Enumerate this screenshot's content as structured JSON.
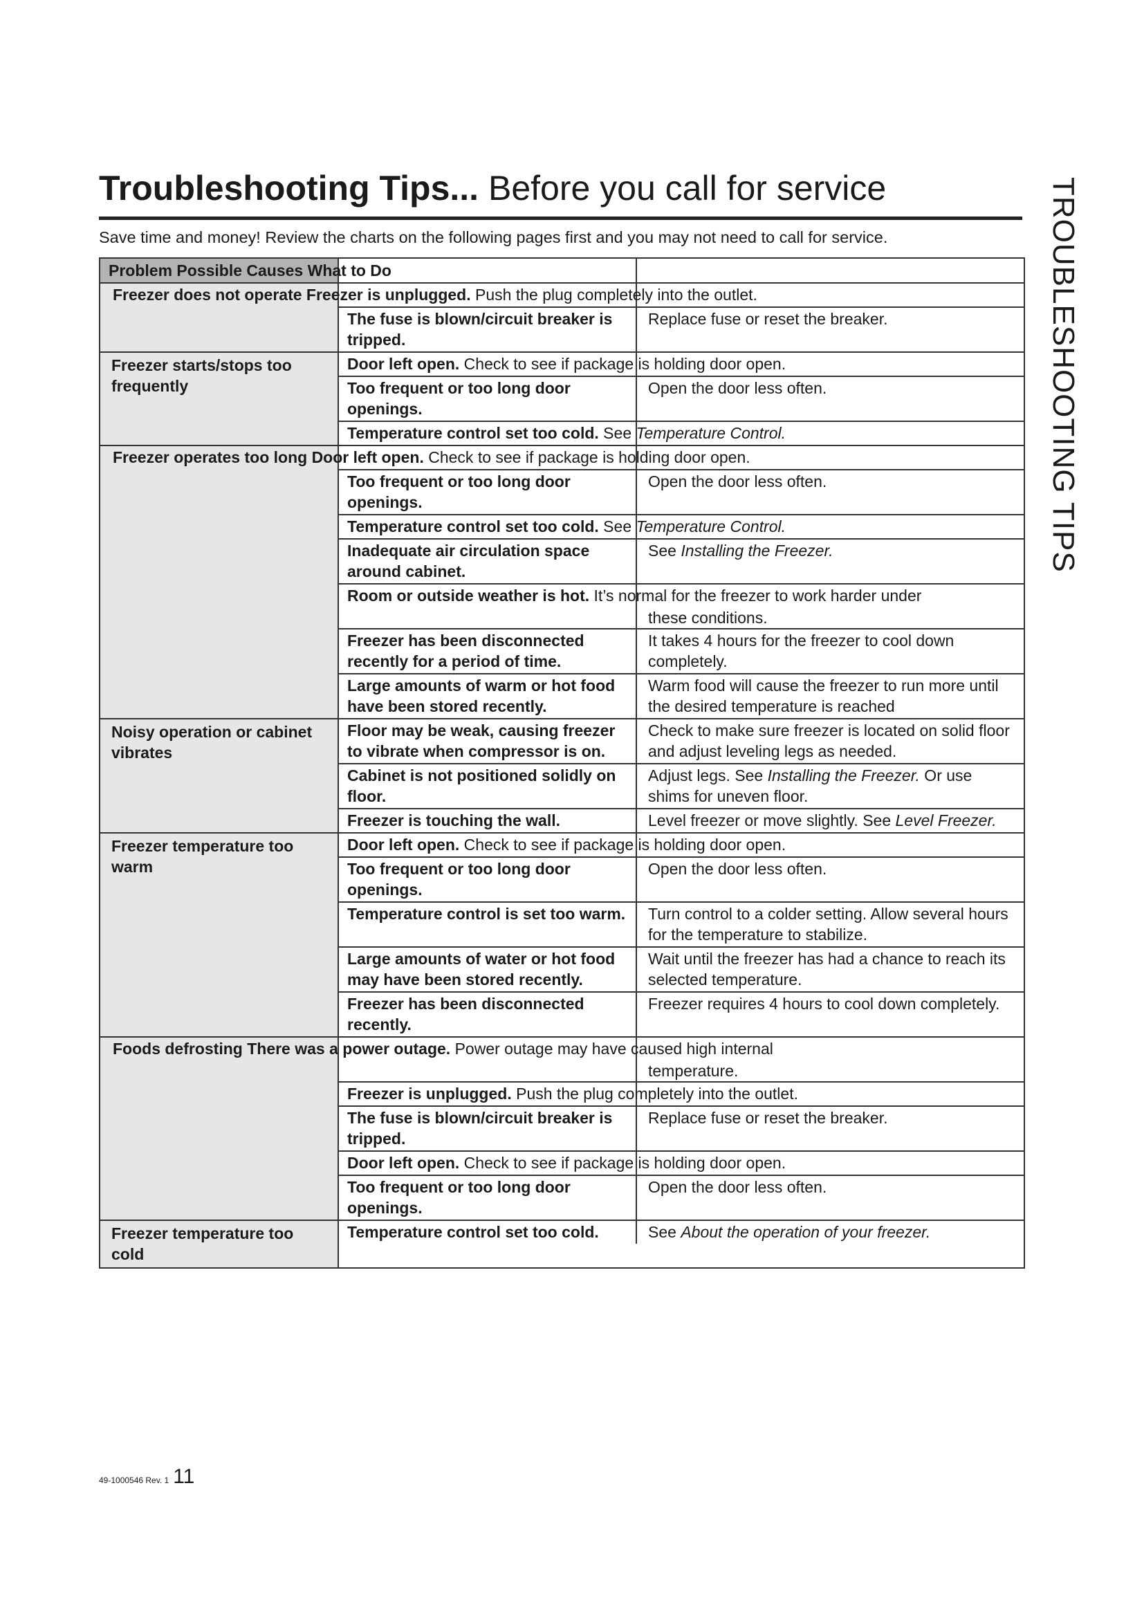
{
  "header": {
    "title_bold": "Troubleshooting Tips...",
    "title_rest": " Before you call for service",
    "intro": "Save time and money! Review the charts on the following pages first and you may not need to call for service.",
    "side_tab": "TROUBLESHOOTING TIPS"
  },
  "table": {
    "header": "Problem Possible Causes What to Do",
    "groups": [
      {
        "problem": "Freezer does not operate",
        "inline": true,
        "rows": [
          {
            "cause": "Freezer is unplugged.",
            "rest": " Push the plug completely into the outlet."
          },
          {
            "cause": "The fuse is blown/circuit breaker is tripped.",
            "action": "Replace fuse or reset the breaker."
          }
        ]
      },
      {
        "problem": "Freezer starts/stops too frequently",
        "rows": [
          {
            "cause": "Door left open.",
            "rest": " Check to see if package is holding door open."
          },
          {
            "cause": "Too frequent or too long door openings.",
            "action": "Open the door less often."
          },
          {
            "cause": "Temperature control set too cold.",
            "rest": " See ",
            "rest_em": "Temperature Control."
          }
        ]
      },
      {
        "problem": "Freezer operates too long",
        "inline": true,
        "rows": [
          {
            "cause": "Door left open.",
            "rest": " Check to see if package is holding door open."
          },
          {
            "cause": "Too frequent or too long door openings.",
            "action": "Open the door less often."
          },
          {
            "cause": "Temperature control set too cold.",
            "rest": " See ",
            "rest_em": "Temperature Control."
          },
          {
            "cause": "Inadequate air circulation space around cabinet.",
            "action": "See ",
            "action_em": "Installing the Freezer."
          },
          {
            "cause": "Room or outside weather is hot.",
            "rest": " It’s normal for the freezer to work harder under",
            "cont": "these conditions."
          },
          {
            "cause": "Freezer has been disconnected recently for a period of time.",
            "action": "It takes 4 hours for the freezer to cool down completely."
          },
          {
            "cause": "Large amounts of warm or hot food have been stored recently.",
            "action": "Warm food will cause the freezer to run more until the desired temperature is reached"
          }
        ]
      },
      {
        "problem": "Noisy operation or cabinet vibrates",
        "rows": [
          {
            "cause": "Floor may be weak, causing freezer to vibrate when compressor is on.",
            "action": "Check to make sure freezer is located on solid floor and adjust leveling legs as needed."
          },
          {
            "cause": "Cabinet is not positioned solidly on floor.",
            "action": "Adjust legs. See ",
            "action_em": "Installing the Freezer.",
            "action_post": " Or use shims for uneven floor."
          },
          {
            "cause": "Freezer is touching the wall.",
            "action": "Level freezer or move slightly. See ",
            "action_em": "Level Freezer."
          }
        ]
      },
      {
        "problem": "Freezer temperature too warm",
        "rows": [
          {
            "cause": "Door left open.",
            "rest": " Check to see if package is holding door open."
          },
          {
            "cause": "Too frequent or too long door openings.",
            "action": "Open the door less often."
          },
          {
            "cause": "Temperature control is set too warm.",
            "action": "Turn control to a colder setting. Allow several hours for the temperature to stabilize."
          },
          {
            "cause": "Large amounts of water or hot food may have been stored recently.",
            "action": "Wait until the freezer has had a chance to reach its selected temperature."
          },
          {
            "cause": "Freezer has been disconnected recently.",
            "action": "Freezer requires 4 hours to cool down completely."
          }
        ]
      },
      {
        "problem": "Foods defrosting",
        "inline": true,
        "rows": [
          {
            "cause": "There was a power outage.",
            "rest": " Power outage may have caused high internal",
            "cont": "temperature."
          },
          {
            "cause": "Freezer is unplugged.",
            "rest": " Push the plug completely into the outlet."
          },
          {
            "cause": "The fuse is blown/circuit breaker is tripped.",
            "action": "Replace fuse or reset the breaker."
          },
          {
            "cause": "Door left open.",
            "rest": " Check to see if package is holding door open."
          },
          {
            "cause": "Too frequent or too long door openings.",
            "action": "Open the door less often."
          }
        ]
      },
      {
        "problem": "Freezer temperature too cold",
        "rows": [
          {
            "cause": "Temperature control set too cold.",
            "action": "See ",
            "action_em": "About the operation of your freezer."
          }
        ]
      }
    ]
  },
  "footer": {
    "code": "49-1000546   Rev. 1",
    "page": "11"
  }
}
